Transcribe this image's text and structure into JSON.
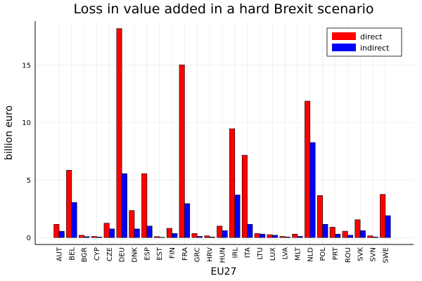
{
  "chart_data": {
    "type": "bar",
    "title": "Loss in value added in a hard Brexit scenario",
    "xlabel": "EU27",
    "ylabel": "billion euro",
    "ylim": [
      -0.6,
      18.8
    ],
    "yticks": [
      0,
      5,
      10,
      15
    ],
    "grid": true,
    "legend_position": "top-right",
    "categories": [
      "AUT",
      "BEL",
      "BGR",
      "CYP",
      "CZE",
      "DEU",
      "DNK",
      "ESP",
      "EST",
      "FIN",
      "FRA",
      "GRC",
      "HRV",
      "HUN",
      "IRL",
      "ITA",
      "LTU",
      "LUX",
      "LVA",
      "MLT",
      "NLD",
      "POL",
      "PRT",
      "ROU",
      "SVK",
      "SVN",
      "SWE"
    ],
    "series": [
      {
        "name": "direct",
        "color": "#ff0000",
        "values": [
          1.15,
          5.85,
          0.2,
          0.1,
          1.25,
          18.15,
          2.35,
          5.55,
          0.08,
          0.8,
          15.0,
          0.35,
          0.15,
          1.0,
          9.45,
          7.15,
          0.35,
          0.25,
          0.1,
          0.3,
          11.85,
          3.65,
          0.9,
          0.55,
          1.55,
          0.15,
          3.75
        ]
      },
      {
        "name": "indirect",
        "color": "#0000ff",
        "values": [
          0.55,
          3.05,
          0.08,
          0.05,
          0.75,
          5.55,
          0.75,
          1.0,
          0.03,
          0.35,
          2.95,
          0.1,
          0.05,
          0.6,
          3.7,
          1.15,
          0.3,
          0.2,
          0.05,
          0.1,
          8.25,
          1.15,
          0.3,
          0.2,
          0.6,
          0.05,
          1.9
        ]
      }
    ]
  }
}
